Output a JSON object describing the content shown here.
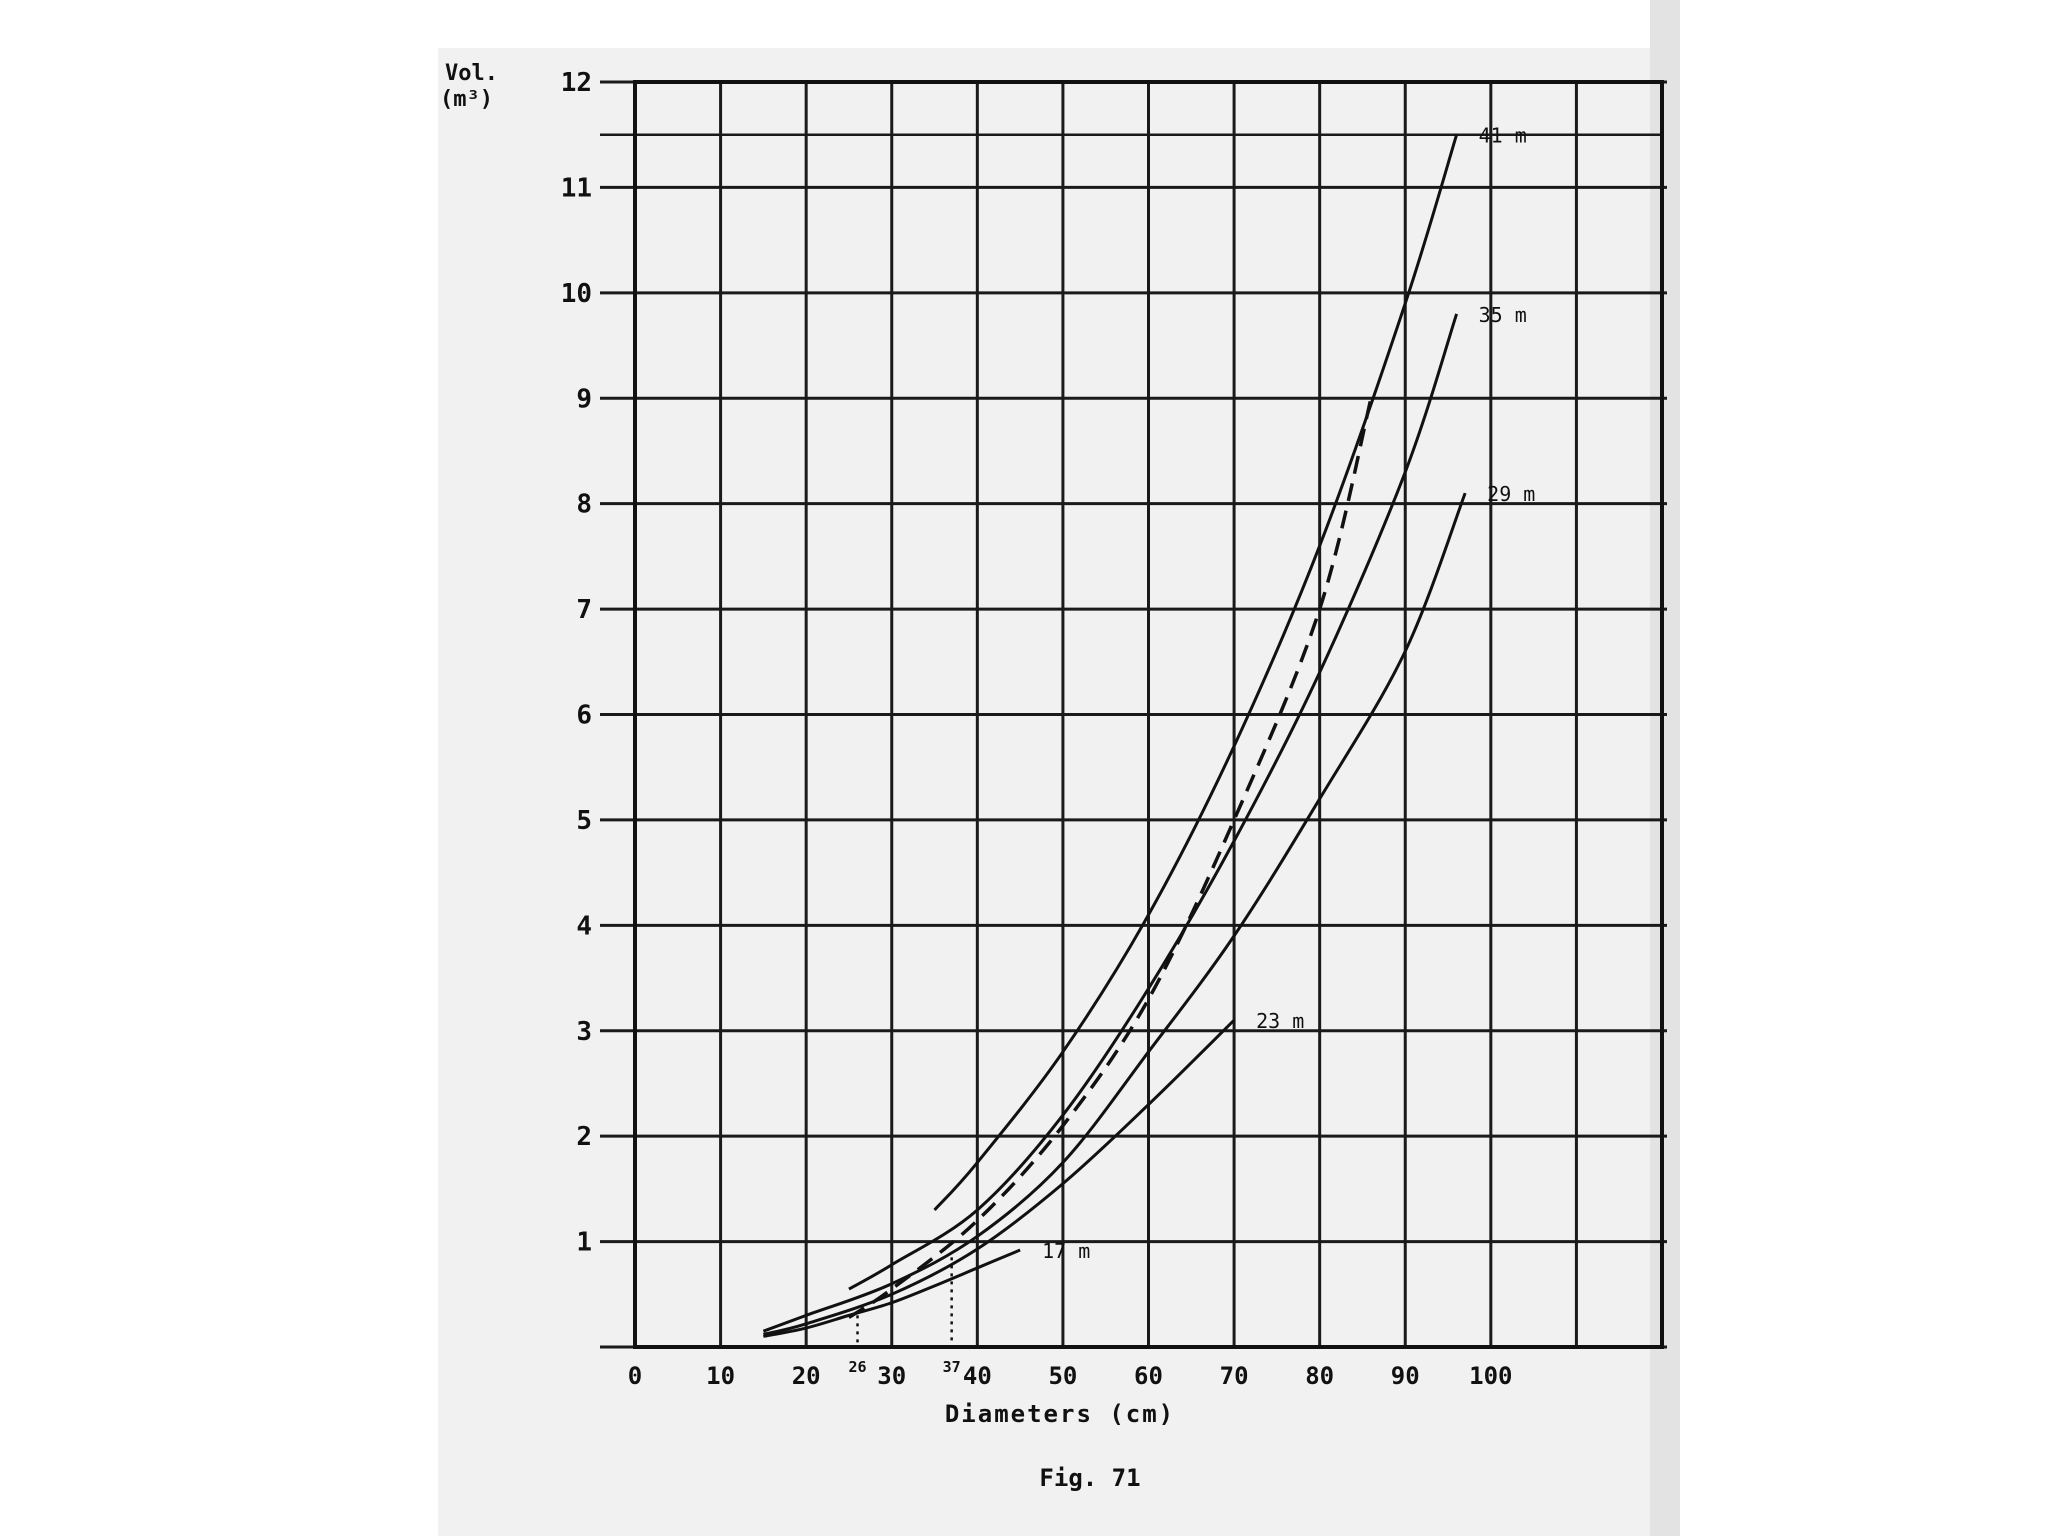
{
  "chart_data": {
    "type": "line",
    "ylabel_line1": "Vol.",
    "ylabel_line2": "(m³)",
    "xlabel": "Diameters (cm)",
    "caption": "Fig. 71",
    "xlim": [
      0,
      120
    ],
    "ylim": [
      0,
      12
    ],
    "x_ticks": [
      "0",
      "10",
      "20",
      "30",
      "40",
      "50",
      "60",
      "70",
      "80",
      "90",
      "100"
    ],
    "x_tick_values": [
      0,
      10,
      20,
      30,
      40,
      50,
      60,
      70,
      80,
      90,
      100
    ],
    "y_ticks": [
      "1",
      "2",
      "3",
      "4",
      "5",
      "6",
      "7",
      "8",
      "9",
      "10",
      "11",
      "12"
    ],
    "y_tick_values": [
      1,
      2,
      3,
      4,
      5,
      6,
      7,
      8,
      9,
      10,
      11,
      12
    ],
    "grid": true,
    "series": [
      {
        "name": "17 m",
        "x": [
          15,
          20,
          25,
          30,
          35,
          40,
          45
        ],
        "y": [
          0.1,
          0.18,
          0.3,
          0.42,
          0.58,
          0.75,
          0.92
        ]
      },
      {
        "name": "23 m",
        "x": [
          15,
          20,
          30,
          40,
          50,
          60,
          70
        ],
        "y": [
          0.12,
          0.22,
          0.5,
          0.93,
          1.55,
          2.3,
          3.1
        ]
      },
      {
        "name": "29 m",
        "x": [
          15,
          20,
          30,
          40,
          50,
          60,
          70,
          80,
          90,
          97
        ],
        "y": [
          0.15,
          0.3,
          0.6,
          1.05,
          1.75,
          2.8,
          3.9,
          5.2,
          6.6,
          8.1
        ]
      },
      {
        "name": "35 m",
        "x": [
          25,
          30,
          40,
          50,
          60,
          70,
          80,
          90,
          96
        ],
        "y": [
          0.55,
          0.78,
          1.3,
          2.2,
          3.4,
          4.8,
          6.4,
          8.3,
          9.8
        ]
      },
      {
        "name": "41 m",
        "x": [
          35,
          40,
          50,
          60,
          70,
          80,
          90,
          96
        ],
        "y": [
          1.3,
          1.75,
          2.8,
          4.1,
          5.7,
          7.6,
          9.9,
          11.5
        ]
      },
      {
        "name": "",
        "style": "dashed",
        "x": [
          25,
          30,
          40,
          50,
          60,
          70,
          80,
          86
        ],
        "y": [
          0.28,
          0.55,
          1.2,
          2.1,
          3.3,
          5.0,
          7.0,
          9.0
        ]
      }
    ],
    "x_markers": [
      {
        "label": "26",
        "x": 26,
        "y": 0.3
      },
      {
        "label": "37",
        "x": 37,
        "y": 0.85
      }
    ]
  }
}
